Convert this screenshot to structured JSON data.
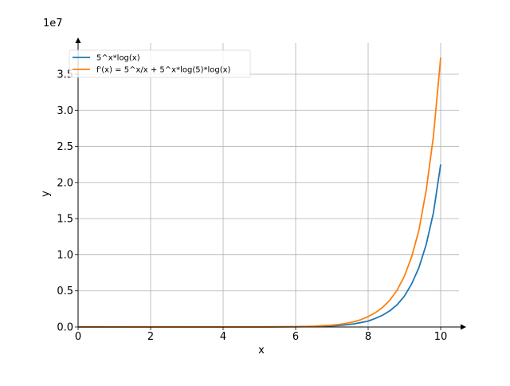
{
  "chart_data": {
    "type": "line",
    "title": "",
    "xlabel": "x",
    "ylabel": "y",
    "y_offset_label": "1e7",
    "xlim": [
      0,
      10.5
    ],
    "ylim": [
      0,
      39000000
    ],
    "x_ticks": [
      0,
      2,
      4,
      6,
      8,
      10
    ],
    "x_tick_labels": [
      "0",
      "2",
      "4",
      "6",
      "8",
      "10"
    ],
    "y_ticks": [
      0,
      5000000,
      10000000,
      15000000,
      20000000,
      25000000,
      30000000,
      35000000
    ],
    "y_tick_labels": [
      "0.0",
      "0.5",
      "1.0",
      "1.5",
      "2.0",
      "2.5",
      "3.0",
      "3.5"
    ],
    "grid": true,
    "legend_position": "top-left",
    "series": [
      {
        "name": "5^x*log(x)",
        "color": "#1f77b4",
        "x": [
          0.01,
          5.0,
          6.0,
          6.5,
          7.0,
          7.2,
          7.4,
          7.6,
          7.8,
          8.0,
          8.2,
          8.4,
          8.6,
          8.8,
          9.0,
          9.2,
          9.4,
          9.6,
          9.8,
          10.0
        ],
        "y": [
          -0.05,
          5030,
          26875,
          62800,
          151000,
          214000,
          304000,
          432000,
          614000,
          813000,
          1190000,
          1640000,
          2250000,
          3080000,
          4270000,
          5970000,
          8220000,
          11400000,
          15800000,
          22500000
        ]
      },
      {
        "name": "f'(x) = 5^x/x + 5^x*log(5)*log(x)",
        "color": "#ff7f0e",
        "x": [
          0.01,
          5.0,
          6.0,
          6.5,
          7.0,
          7.2,
          7.4,
          7.6,
          7.8,
          8.0,
          8.2,
          8.4,
          8.6,
          8.8,
          9.0,
          9.2,
          9.4,
          9.6,
          9.8,
          10.0
        ],
        "y": [
          -0.05,
          8725,
          45860,
          104900,
          255000,
          360000,
          510000,
          720000,
          1010000,
          1440000,
          1980000,
          2720000,
          3730000,
          5110000,
          7040000,
          9720000,
          13400000,
          18900000,
          26400000,
          37300000
        ]
      }
    ]
  }
}
